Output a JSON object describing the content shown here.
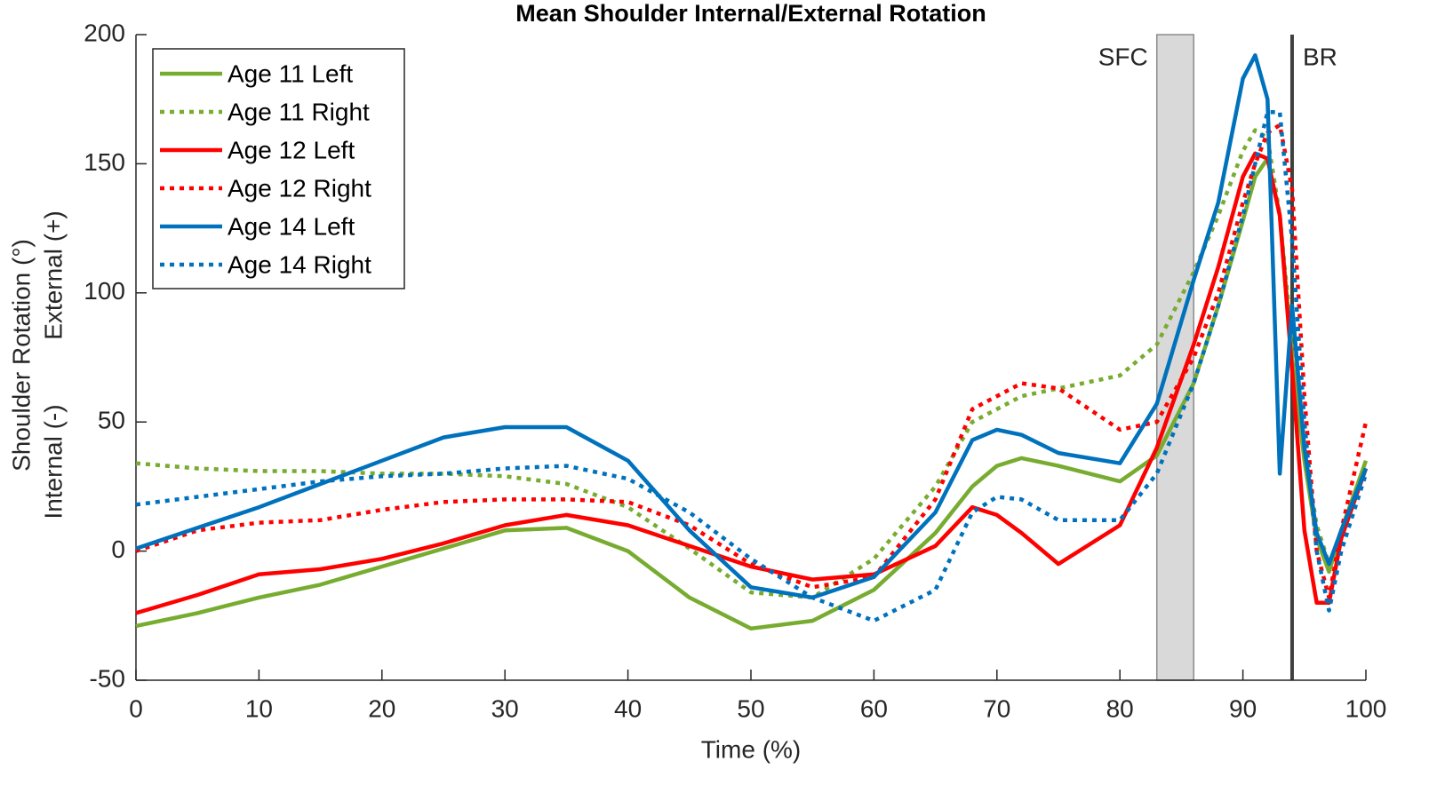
{
  "chart_data": {
    "type": "line",
    "title": "Mean Shoulder Internal/External Rotation",
    "xlabel": "Time (%)",
    "ylabel": "Shoulder Rotation (°)",
    "ylabel_internal": "Internal (-)",
    "ylabel_external": "External (+)",
    "xlim": [
      0,
      100
    ],
    "xticks": [
      0,
      10,
      20,
      30,
      40,
      50,
      60,
      70,
      80,
      90,
      100
    ],
    "ylim": [
      -50,
      200
    ],
    "yticks": [
      -50,
      0,
      50,
      100,
      150,
      200
    ],
    "legend": "upper-left",
    "shaded_span": {
      "label": "SFC",
      "from": 83,
      "to": 86
    },
    "marker_line": {
      "label": "BR",
      "x": 94
    },
    "x": [
      0,
      5,
      10,
      15,
      20,
      25,
      30,
      35,
      40,
      45,
      50,
      55,
      60,
      65,
      68,
      70,
      72,
      75,
      80,
      83,
      86,
      88,
      90,
      91,
      92,
      93,
      94,
      95,
      96,
      97,
      98,
      100
    ],
    "series": [
      {
        "name": "Age 11 Left",
        "color": "#77ac30",
        "style": "solid",
        "values": [
          -29,
          -24,
          -18,
          -13,
          -6,
          1,
          8,
          9,
          0,
          -18,
          -30,
          -27,
          -15,
          7,
          25,
          33,
          36,
          33,
          27,
          37,
          65,
          95,
          128,
          145,
          152,
          130,
          75,
          35,
          5,
          -8,
          8,
          35
        ]
      },
      {
        "name": "Age 11 Right",
        "color": "#77ac30",
        "style": "dotted",
        "values": [
          34,
          32,
          31,
          31,
          30,
          30,
          29,
          26,
          17,
          1,
          -16,
          -18,
          -3,
          25,
          50,
          55,
          60,
          63,
          68,
          80,
          108,
          130,
          155,
          163,
          160,
          130,
          80,
          40,
          10,
          -5,
          8,
          33
        ]
      },
      {
        "name": "Age 12 Left",
        "color": "#ff0000",
        "style": "solid",
        "values": [
          -24,
          -17,
          -9,
          -7,
          -3,
          3,
          10,
          14,
          10,
          2,
          -6,
          -11,
          -9,
          2,
          17,
          14,
          7,
          -5,
          10,
          40,
          80,
          110,
          145,
          154,
          152,
          130,
          70,
          8,
          -20,
          -20,
          5,
          32
        ]
      },
      {
        "name": "Age 12 Right",
        "color": "#ff0000",
        "style": "dotted",
        "values": [
          0,
          8,
          11,
          12,
          16,
          19,
          20,
          20,
          19,
          10,
          -5,
          -14,
          -10,
          20,
          55,
          60,
          65,
          63,
          47,
          50,
          75,
          100,
          135,
          150,
          162,
          165,
          140,
          60,
          0,
          -18,
          8,
          50
        ]
      },
      {
        "name": "Age 14 Left",
        "color": "#0072bd",
        "style": "solid",
        "values": [
          1,
          9,
          17,
          26,
          35,
          44,
          48,
          48,
          35,
          8,
          -14,
          -18,
          -10,
          15,
          43,
          47,
          45,
          38,
          34,
          57,
          105,
          135,
          183,
          192,
          175,
          30,
          95,
          40,
          7,
          -5,
          8,
          32
        ]
      },
      {
        "name": "Age 14 Right",
        "color": "#0072bd",
        "style": "dotted",
        "values": [
          18,
          21,
          24,
          27,
          29,
          30,
          32,
          33,
          28,
          15,
          -3,
          -18,
          -27,
          -15,
          15,
          21,
          20,
          12,
          12,
          30,
          65,
          95,
          130,
          150,
          170,
          170,
          120,
          50,
          0,
          -23,
          0,
          30
        ]
      }
    ]
  }
}
